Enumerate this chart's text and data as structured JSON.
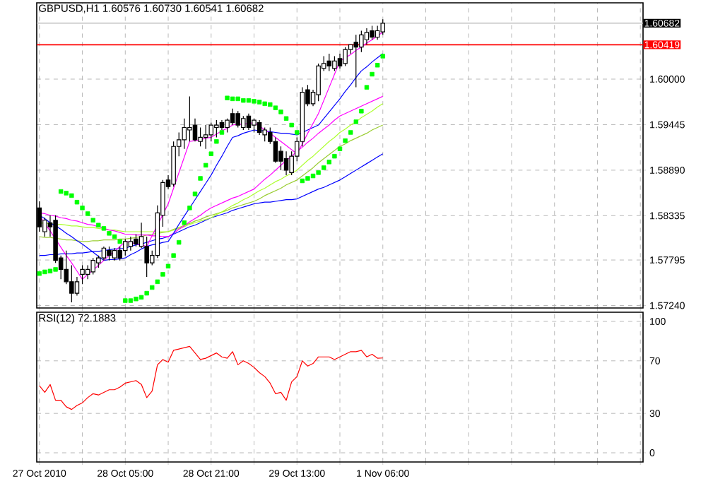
{
  "chart_data": [
    {
      "type": "candlestick",
      "title": "GBPUSD,H1  1.60576 1.60730 1.60541 1.60682",
      "color": "#000000",
      "grid": true,
      "tick_labels": "y",
      "ylim": [
        1.5721,
        1.6093
      ],
      "yticks": [
        {
          "value": 1.6,
          "label": "1.60000"
        },
        {
          "value": 1.59445,
          "label": "1.59445"
        },
        {
          "value": 1.5889,
          "label": "1.58890"
        },
        {
          "value": 1.58335,
          "label": "1.58335"
        },
        {
          "value": 1.57795,
          "label": "1.57795"
        },
        {
          "value": 1.5724,
          "label": "1.57240"
        }
      ],
      "ref_lines": [
        {
          "axis": "y",
          "value": 1.60682,
          "label": "1.60682",
          "color": "#c0c0c0"
        },
        {
          "axis": "y",
          "value": 1.60419,
          "label": "1.60419",
          "color": "#ff0000"
        }
      ],
      "categories": [
        null,
        null,
        null,
        null,
        null,
        null,
        null,
        null,
        null,
        null,
        null,
        null,
        null,
        null,
        null,
        null,
        null,
        null,
        null,
        null,
        null,
        null,
        null,
        null,
        null,
        null,
        null,
        null,
        null,
        null,
        null,
        null,
        null,
        null,
        null,
        null,
        null,
        null,
        null,
        null,
        null,
        null,
        null,
        null,
        null,
        null,
        null,
        null,
        null,
        null,
        null,
        null,
        null,
        null,
        null,
        null,
        null,
        null,
        null,
        null,
        null,
        null,
        null,
        null,
        null
      ],
      "ohlc": [
        [
          1.5843,
          1.5851,
          1.5814,
          1.582
        ],
        [
          1.5814,
          1.5831,
          1.5808,
          1.5828
        ],
        [
          1.5825,
          1.5834,
          1.5808,
          1.582
        ],
        [
          1.5828,
          1.5834,
          1.5776,
          1.5779
        ],
        [
          1.5782,
          1.5785,
          1.5756,
          1.5768
        ],
        [
          1.5768,
          1.5791,
          1.575,
          1.5753
        ],
        [
          1.5753,
          1.5773,
          1.5728,
          1.5739
        ],
        [
          1.5739,
          1.5759,
          1.5736,
          1.5753
        ],
        [
          1.5762,
          1.5773,
          1.575,
          1.5768
        ],
        [
          1.5762,
          1.5773,
          1.5756,
          1.5768
        ],
        [
          1.5765,
          1.5782,
          1.5762,
          1.5779
        ],
        [
          1.5776,
          1.5785,
          1.577,
          1.5782
        ],
        [
          1.5782,
          1.5796,
          1.5779,
          1.5794
        ],
        [
          1.5791,
          1.5796,
          1.5779,
          1.5785
        ],
        [
          1.5782,
          1.5794,
          1.5779,
          1.5791
        ],
        [
          1.5791,
          1.5796,
          1.5779,
          1.5782
        ],
        [
          1.5791,
          1.5805,
          1.5785,
          1.5802
        ],
        [
          1.5796,
          1.5808,
          1.5791,
          1.5802
        ],
        [
          1.5805,
          1.5811,
          1.5796,
          1.5799
        ],
        [
          1.5796,
          1.5825,
          1.5794,
          1.5808
        ],
        [
          1.5796,
          1.5808,
          1.5759,
          1.5776
        ],
        [
          1.5776,
          1.5791,
          1.5773,
          1.5785
        ],
        [
          1.5785,
          1.5846,
          1.5782,
          1.5837
        ],
        [
          1.5834,
          1.5877,
          1.582,
          1.5874
        ],
        [
          1.5877,
          1.5883,
          1.5866,
          1.5869
        ],
        [
          1.5872,
          1.5924,
          1.5869,
          1.5918
        ],
        [
          1.5918,
          1.5935,
          1.5906,
          1.5926
        ],
        [
          1.5926,
          1.5952,
          1.5915,
          1.5941
        ],
        [
          1.5938,
          1.5979,
          1.5924,
          1.5941
        ],
        [
          1.5944,
          1.5952,
          1.5924,
          1.5926
        ],
        [
          1.5924,
          1.5941,
          1.5918,
          1.5929
        ],
        [
          1.5929,
          1.5944,
          1.5915,
          1.5932
        ],
        [
          1.5932,
          1.5947,
          1.5924,
          1.5944
        ],
        [
          1.5941,
          1.595,
          1.5929,
          1.5944
        ],
        [
          1.5947,
          1.595,
          1.5938,
          1.5941
        ],
        [
          1.5941,
          1.5952,
          1.5935,
          1.595
        ],
        [
          1.5958,
          1.5964,
          1.5944,
          1.5947
        ],
        [
          1.5958,
          1.5961,
          1.5941,
          1.5944
        ],
        [
          1.5941,
          1.5955,
          1.5938,
          1.5952
        ],
        [
          1.5955,
          1.5958,
          1.5938,
          1.5941
        ],
        [
          1.5944,
          1.5952,
          1.5935,
          1.595
        ],
        [
          1.5947,
          1.595,
          1.5932,
          1.5935
        ],
        [
          1.5932,
          1.5941,
          1.5924,
          1.5938
        ],
        [
          1.5935,
          1.5941,
          1.5921,
          1.5924
        ],
        [
          1.5924,
          1.5929,
          1.5898,
          1.59
        ],
        [
          1.5912,
          1.5918,
          1.5889,
          1.59
        ],
        [
          1.5903,
          1.5912,
          1.5883,
          1.5889
        ],
        [
          1.5886,
          1.5912,
          1.5883,
          1.5906
        ],
        [
          1.5906,
          1.5929,
          1.59,
          1.5924
        ],
        [
          1.5924,
          1.599,
          1.5918,
          1.5984
        ],
        [
          1.5987,
          1.5993,
          1.5967,
          1.597
        ],
        [
          1.597,
          1.5987,
          1.5967,
          1.5984
        ],
        [
          1.5981,
          1.6019,
          1.5973,
          1.6016
        ],
        [
          1.6013,
          1.6028,
          1.601,
          1.6019
        ],
        [
          1.6022,
          1.6031,
          1.601,
          1.6016
        ],
        [
          1.6013,
          1.6028,
          1.601,
          1.6022
        ],
        [
          1.6025,
          1.6031,
          1.6013,
          1.6016
        ],
        [
          1.6019,
          1.6039,
          1.6016,
          1.6036
        ],
        [
          1.6036,
          1.6042,
          1.6031,
          1.6042
        ],
        [
          1.6045,
          1.6054,
          1.599,
          1.6039
        ],
        [
          1.6039,
          1.6059,
          1.6033,
          1.6054
        ],
        [
          1.6048,
          1.6062,
          1.6042,
          1.6057
        ],
        [
          1.6059,
          1.6065,
          1.6048,
          1.6051
        ],
        [
          1.6051,
          1.6065,
          1.6048,
          1.6059
        ],
        [
          1.60576,
          1.6073,
          1.60541,
          1.60682
        ]
      ],
      "series": [
        {
          "type": "line",
          "color": "#0000ff",
          "values": [
            1.5785,
            1.5785,
            1.5786,
            1.5786,
            1.5787,
            1.5787,
            1.5787,
            1.5788,
            1.5788,
            1.5789,
            1.579,
            1.579,
            1.5791,
            1.5792,
            1.5793,
            1.5793,
            1.5794,
            1.5796,
            1.5798,
            1.5799,
            1.5801,
            1.5803,
            1.5805,
            1.5806,
            1.5808,
            1.5811,
            1.5814,
            1.5817,
            1.582,
            1.5822,
            1.5825,
            1.5828,
            1.5831,
            1.5833,
            1.5835,
            1.5837,
            1.584,
            1.5842,
            1.5844,
            1.5846,
            1.5848,
            1.5849,
            1.585,
            1.585,
            1.5851,
            1.5852,
            1.5853,
            1.5853,
            1.5854,
            1.5857,
            1.586,
            1.5863,
            1.5866,
            1.5868,
            1.5871,
            1.5874,
            1.5877,
            1.5881,
            1.5885,
            1.5889,
            1.5893,
            1.5897,
            1.5901,
            1.5905,
            1.5909
          ]
        },
        {
          "type": "line",
          "color": "#9acd32",
          "values": [
            1.5808,
            1.5807,
            1.5807,
            1.5806,
            1.5805,
            1.5804,
            1.5804,
            1.5803,
            1.5802,
            1.5802,
            1.5803,
            1.5803,
            1.5804,
            1.5804,
            1.5804,
            1.5805,
            1.5805,
            1.5806,
            1.5807,
            1.5808,
            1.581,
            1.5811,
            1.5812,
            1.5813,
            1.5814,
            1.5817,
            1.5819,
            1.5822,
            1.5824,
            1.5827,
            1.5829,
            1.5832,
            1.5834,
            1.5836,
            1.5838,
            1.584,
            1.5843,
            1.5845,
            1.5847,
            1.5849,
            1.5851,
            1.5854,
            1.5858,
            1.5861,
            1.5864,
            1.5867,
            1.5871,
            1.5874,
            1.5877,
            1.5882,
            1.5887,
            1.5892,
            1.5898,
            1.5903,
            1.5908,
            1.5913,
            1.5918,
            1.5921,
            1.5925,
            1.5928,
            1.5931,
            1.5934,
            1.5938,
            1.5941,
            1.5944
          ]
        },
        {
          "type": "line",
          "color": "#adff2f",
          "values": [
            1.5825,
            1.5824,
            1.5824,
            1.5823,
            1.5823,
            1.5822,
            1.5821,
            1.5821,
            1.582,
            1.5819,
            1.5819,
            1.5818,
            1.5817,
            1.5816,
            1.5816,
            1.5815,
            1.5814,
            1.5814,
            1.5814,
            1.5814,
            1.5814,
            1.5814,
            1.5814,
            1.5814,
            1.5814,
            1.5816,
            1.5818,
            1.582,
            1.5823,
            1.5825,
            1.5827,
            1.5829,
            1.5831,
            1.5835,
            1.5838,
            1.5842,
            1.5846,
            1.5849,
            1.5853,
            1.5856,
            1.586,
            1.5864,
            1.5867,
            1.5871,
            1.5875,
            1.5878,
            1.5882,
            1.5885,
            1.5889,
            1.5895,
            1.5901,
            1.5906,
            1.5912,
            1.5918,
            1.5924,
            1.5929,
            1.5935,
            1.5939,
            1.5944,
            1.5948,
            1.5953,
            1.5957,
            1.5961,
            1.5966,
            1.597
          ]
        },
        {
          "type": "line",
          "color": "#ff00ff",
          "values": [
            1.5837,
            1.5836,
            1.5834,
            1.5833,
            1.5831,
            1.583,
            1.5828,
            1.5827,
            1.5825,
            1.5823,
            1.5822,
            1.582,
            1.5818,
            1.5816,
            1.5815,
            1.5813,
            1.5811,
            1.5811,
            1.581,
            1.581,
            1.581,
            1.5809,
            1.5809,
            1.5808,
            1.5808,
            1.5812,
            1.5817,
            1.5821,
            1.5826,
            1.583,
            1.5834,
            1.5839,
            1.5843,
            1.5846,
            1.5849,
            1.5852,
            1.5855,
            1.5857,
            1.586,
            1.5863,
            1.5866,
            1.5872,
            1.5878,
            1.5883,
            1.5889,
            1.5895,
            1.5901,
            1.5906,
            1.5912,
            1.5917,
            1.5923,
            1.5928,
            1.5934,
            1.5939,
            1.5944,
            1.595,
            1.5955,
            1.5958,
            1.5961,
            1.5964,
            1.5967,
            1.597,
            1.5973,
            1.5976,
            1.5979
          ]
        },
        {
          "type": "line",
          "color": "#0000ff",
          "values": [
            1.5834,
            1.583,
            1.5825,
            1.5821,
            1.5817,
            1.5812,
            1.5808,
            1.5803,
            1.5799,
            1.5794,
            1.5789,
            1.5784,
            1.5779,
            1.578,
            1.578,
            1.5781,
            1.5782,
            1.5786,
            1.5789,
            1.5793,
            1.5796,
            1.5798,
            1.5799,
            1.5801,
            1.5802,
            1.5812,
            1.5823,
            1.5833,
            1.5843,
            1.5853,
            1.5863,
            1.5873,
            1.5883,
            1.5895,
            1.5906,
            1.5918,
            1.5929,
            1.5931,
            1.5934,
            1.5936,
            1.5938,
            1.5937,
            1.5937,
            1.5936,
            1.5935,
            1.5934,
            1.5934,
            1.5933,
            1.5932,
            1.5935,
            1.5938,
            1.5941,
            1.5944,
            1.5952,
            1.596,
            1.5968,
            1.5976,
            1.5985,
            1.5993,
            1.6002,
            1.601,
            1.6015,
            1.6021,
            1.6026,
            1.6031
          ]
        },
        {
          "type": "line",
          "color": "#ff00ff",
          "values": [
            1.5834,
            1.5824,
            1.5815,
            1.5805,
            1.5795,
            1.5785,
            1.5776,
            1.5766,
            1.5756,
            1.5762,
            1.5767,
            1.5773,
            1.5779,
            1.5785,
            1.579,
            1.5796,
            1.5802,
            1.5801,
            1.5799,
            1.5798,
            1.5796,
            1.5809,
            1.5822,
            1.5835,
            1.5848,
            1.5867,
            1.5886,
            1.5905,
            1.5924,
            1.5925,
            1.5926,
            1.5928,
            1.5929,
            1.5933,
            1.5937,
            1.594,
            1.5944,
            1.5945,
            1.5945,
            1.5946,
            1.5947,
            1.5943,
            1.5938,
            1.5934,
            1.5929,
            1.5924,
            1.5919,
            1.5914,
            1.5909,
            1.5921,
            1.5934,
            1.5946,
            1.5958,
            1.5974,
            1.599,
            1.6006,
            1.6022,
            1.6026,
            1.603,
            1.6035,
            1.6039,
            1.6044,
            1.6048,
            1.6053,
            1.6057
          ]
        },
        {
          "type": "scatter",
          "marker": "square",
          "color": "#00ff00",
          "values": [
            1.5763,
            1.5765,
            1.5766,
            1.5768,
            1.5863,
            1.5861,
            1.5858,
            1.585,
            1.5843,
            1.5836,
            1.5828,
            1.5822,
            1.5818,
            1.5812,
            1.5808,
            1.5802,
            1.573,
            1.573,
            1.5732,
            1.5734,
            1.5739,
            1.5746,
            1.5753,
            1.5762,
            1.5772,
            1.5785,
            1.5801,
            1.5825,
            1.5843,
            1.586,
            1.5879,
            1.5895,
            1.5909,
            1.5924,
            1.5935,
            1.5977,
            1.5976,
            1.5976,
            1.5974,
            1.5974,
            1.5973,
            1.5972,
            1.597,
            1.5969,
            1.5965,
            1.596,
            1.5952,
            1.5944,
            1.5935,
            1.5876,
            1.5879,
            1.5882,
            1.5886,
            1.5892,
            1.5899,
            1.5906,
            1.5915,
            1.5925,
            1.5935,
            1.5948,
            1.5961,
            1.599,
            1.6006,
            1.6017,
            1.6028
          ]
        }
      ]
    },
    {
      "type": "line",
      "title": "RSI(12) 72.1883",
      "grid": true,
      "ylim": [
        -7,
        107
      ],
      "yticks": [
        0,
        30,
        70,
        100
      ],
      "categories": [
        "27 Oct 2010",
        null,
        null,
        null,
        null,
        null,
        null,
        null,
        null,
        null,
        null,
        null,
        null,
        null,
        null,
        null,
        "28 Oct 05:00",
        null,
        null,
        null,
        null,
        null,
        null,
        null,
        null,
        null,
        null,
        null,
        null,
        null,
        null,
        null,
        "28 Oct 21:00",
        null,
        null,
        null,
        null,
        null,
        null,
        null,
        null,
        null,
        null,
        null,
        null,
        null,
        null,
        null,
        "29 Oct 13:00",
        null,
        null,
        null,
        null,
        null,
        null,
        null,
        null,
        null,
        null,
        null,
        null,
        null,
        null,
        null,
        "1 Nov 06:00"
      ],
      "series": [
        {
          "color": "#ff0000",
          "values": [
            51,
            46,
            52,
            40,
            40,
            35,
            33,
            36,
            38,
            42,
            45,
            44,
            46,
            48,
            48,
            50,
            53,
            54,
            55,
            52,
            42,
            47,
            67,
            71,
            69,
            78,
            79,
            80,
            81,
            76,
            71,
            72,
            74,
            76,
            73,
            72,
            77,
            67,
            70,
            68,
            65,
            61,
            58,
            53,
            45,
            46,
            40,
            54,
            58,
            70,
            66,
            68,
            73,
            73,
            73,
            71,
            73,
            75,
            77,
            77,
            78,
            73,
            75,
            72,
            72.1883
          ]
        }
      ]
    }
  ]
}
